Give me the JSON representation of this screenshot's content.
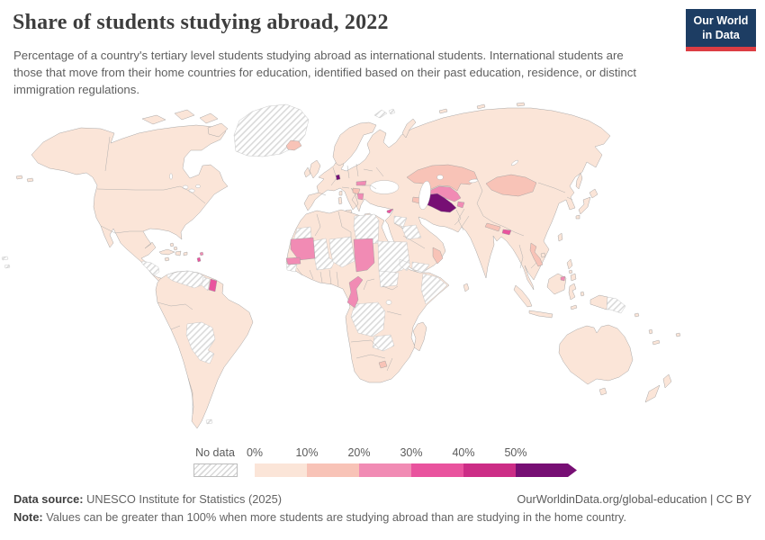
{
  "header": {
    "title": "Share of students studying abroad, 2022",
    "subtitle": "Percentage of a country's tertiary level students studying abroad as international students. International students are those that move from their home countries for education, identified based on their past education, residence, or distinct immigration regulations.",
    "logo": {
      "line1": "Our World",
      "line2": "in Data",
      "bg": "#1d3d63",
      "accent": "#dc3d43"
    }
  },
  "legend": {
    "no_data_label": "No data",
    "bins": [
      {
        "tick": "0%",
        "range": "0-10%",
        "color": "#fbe5d8"
      },
      {
        "tick": "10%",
        "range": "10-20%",
        "color": "#f8c3b7"
      },
      {
        "tick": "20%",
        "range": "20-30%",
        "color": "#f18bb4"
      },
      {
        "tick": "30%",
        "range": "30-40%",
        "color": "#e9539e"
      },
      {
        "tick": "40%",
        "range": "40-50%",
        "color": "#cc2d86"
      },
      {
        "tick": "50%",
        "range": "50%+",
        "color": "#770f74"
      }
    ]
  },
  "map": {
    "border_color": "#9e9e9e",
    "no_data_style": "diagonal-hatch",
    "regions": [
      {
        "id": "north-america",
        "name": "North America mainland",
        "bin": 0
      },
      {
        "id": "arctic-1",
        "name": "Canadian arctic island",
        "bin": 0
      },
      {
        "id": "arctic-2",
        "name": "Canadian arctic island",
        "bin": 0
      },
      {
        "id": "arctic-3",
        "name": "Canadian arctic island",
        "bin": 0
      },
      {
        "id": "arctic-4",
        "name": "Baffin island",
        "bin": 0
      },
      {
        "id": "aleutians",
        "name": "Aleutian islands",
        "bin": 0
      },
      {
        "id": "greenland",
        "name": "Greenland",
        "bin": -1
      },
      {
        "id": "iceland",
        "name": "Iceland",
        "bin": 1
      },
      {
        "id": "svalbard",
        "name": "Svalbard",
        "bin": -1
      },
      {
        "id": "cuba",
        "name": "Cuba",
        "bin": 0
      },
      {
        "id": "hispaniola",
        "name": "Hispaniola",
        "bin": 0
      },
      {
        "id": "jamaica",
        "name": "Jamaica",
        "bin": 0
      },
      {
        "id": "puerto-rico",
        "name": "Puerto Rico",
        "bin": 0
      },
      {
        "id": "bahamas",
        "name": "Bahamas",
        "bin": 0
      },
      {
        "id": "antilles-a",
        "name": "Lesser Antilles island",
        "bin": 2
      },
      {
        "id": "antilles-b",
        "name": "Lesser Antilles island",
        "bin": 3
      },
      {
        "id": "honduras-nicaragua",
        "name": "Honduras and Nicaragua",
        "bin": -1
      },
      {
        "id": "south-america",
        "name": "South America mainland",
        "bin": 0
      },
      {
        "id": "venezuela",
        "name": "Venezuela",
        "bin": -1
      },
      {
        "id": "guyana",
        "name": "Guyana",
        "bin": -1
      },
      {
        "id": "suriname",
        "name": "Suriname",
        "bin": 3
      },
      {
        "id": "bolivia-paraguay",
        "name": "Bolivia and Paraguay",
        "bin": -1
      },
      {
        "id": "falklands",
        "name": "Falkland Islands",
        "bin": -1
      },
      {
        "id": "eurasia",
        "name": "Eurasia mainland",
        "bin": 0
      },
      {
        "id": "scandinavia",
        "name": "Scandinavia",
        "bin": 0
      },
      {
        "id": "uk",
        "name": "United Kingdom",
        "bin": 0
      },
      {
        "id": "ireland",
        "name": "Ireland",
        "bin": 0
      },
      {
        "id": "novaya-zemlya",
        "name": "Novaya Zemlya",
        "bin": 0
      },
      {
        "id": "arctic-specks",
        "name": "Russian arctic islands",
        "bin": 0
      },
      {
        "id": "sicily",
        "name": "Sicily",
        "bin": 0
      },
      {
        "id": "sardinia",
        "name": "Sardinia",
        "bin": 0
      },
      {
        "id": "corsica",
        "name": "Corsica",
        "bin": 0
      },
      {
        "id": "crete",
        "name": "Crete",
        "bin": 0
      },
      {
        "id": "luxembourg",
        "name": "Luxembourg",
        "bin": 5
      },
      {
        "id": "slovakia",
        "name": "Slovakia",
        "bin": 2
      },
      {
        "id": "moldova",
        "name": "Moldova",
        "bin": 2
      },
      {
        "id": "croatia-bosnia",
        "name": "Croatia and Bosnia",
        "bin": 1
      },
      {
        "id": "albania-macedonia",
        "name": "Albania and North Macedonia",
        "bin": 2
      },
      {
        "id": "cyprus",
        "name": "Cyprus",
        "bin": 3
      },
      {
        "id": "africa",
        "name": "Africa mainland",
        "bin": 0
      },
      {
        "id": "madagascar",
        "name": "Madagascar",
        "bin": 0
      },
      {
        "id": "western-sahara",
        "name": "Western Sahara",
        "bin": -1
      },
      {
        "id": "mali",
        "name": "Mali",
        "bin": -1
      },
      {
        "id": "niger",
        "name": "Niger",
        "bin": -1
      },
      {
        "id": "gambia-bissau",
        "name": "Gambia and Guinea-Bissau",
        "bin": -1
      },
      {
        "id": "libya",
        "name": "Libya",
        "bin": -1
      },
      {
        "id": "sudan",
        "name": "Sudan",
        "bin": -1
      },
      {
        "id": "south-sudan",
        "name": "South Sudan",
        "bin": -1
      },
      {
        "id": "eritrea-djibouti",
        "name": "Eritrea and Djibouti",
        "bin": -1
      },
      {
        "id": "somalia",
        "name": "Somalia",
        "bin": -1
      },
      {
        "id": "dr-congo",
        "name": "Democratic Republic of Congo",
        "bin": -1
      },
      {
        "id": "zambia",
        "name": "Zambia",
        "bin": -1
      },
      {
        "id": "mauritania",
        "name": "Mauritania",
        "bin": 2
      },
      {
        "id": "senegal",
        "name": "Senegal",
        "bin": 2
      },
      {
        "id": "chad",
        "name": "Chad",
        "bin": 2
      },
      {
        "id": "cameroon-congo",
        "name": "Cameroon and Congo",
        "bin": 2
      },
      {
        "id": "lesotho",
        "name": "Lesotho",
        "bin": 1
      },
      {
        "id": "syria",
        "name": "Syria",
        "bin": -1
      },
      {
        "id": "iraq",
        "name": "Iraq",
        "bin": -1
      },
      {
        "id": "yemen",
        "name": "Yemen",
        "bin": -1
      },
      {
        "id": "oman",
        "name": "Oman",
        "bin": 1
      },
      {
        "id": "azerbaijan",
        "name": "Azerbaijan",
        "bin": 1
      },
      {
        "id": "kazakhstan",
        "name": "Kazakhstan",
        "bin": 1
      },
      {
        "id": "uzbekistan",
        "name": "Uzbekistan",
        "bin": 2
      },
      {
        "id": "turkmenistan",
        "name": "Turkmenistan",
        "bin": 5
      },
      {
        "id": "tajikistan",
        "name": "Tajikistan",
        "bin": 2
      },
      {
        "id": "mongolia",
        "name": "Mongolia",
        "bin": 1
      },
      {
        "id": "nepal",
        "name": "Nepal",
        "bin": 1
      },
      {
        "id": "bhutan",
        "name": "Bhutan",
        "bin": 3
      },
      {
        "id": "laos",
        "name": "Laos",
        "bin": 1
      },
      {
        "id": "sakhalin",
        "name": "Sakhalin",
        "bin": 0
      },
      {
        "id": "hokkaido",
        "name": "Japan Hokkaido",
        "bin": 0
      },
      {
        "id": "honshu",
        "name": "Japan Honshu",
        "b in": 0,
        "bin": 0
      },
      {
        "id": "kyushu",
        "name": "Japan Kyushu",
        "bin": 0
      },
      {
        "id": "taiwan",
        "name": "Taiwan",
        "bin": 0
      },
      {
        "id": "hainan",
        "name": "Hainan",
        "bin": 0
      },
      {
        "id": "sri-lanka",
        "name": "Sri Lanka",
        "bin": 0
      },
      {
        "id": "luzon",
        "name": "Philippines Luzon",
        "bin": 0
      },
      {
        "id": "visayas",
        "name": "Philippines Visayas",
        "bin": 0
      },
      {
        "id": "mindanao",
        "name": "Philippines Mindanao",
        "bin": 0
      },
      {
        "id": "sumatra",
        "name": "Sumatra",
        "bin": 0
      },
      {
        "id": "java",
        "name": "Java",
        "bin": 0
      },
      {
        "id": "borneo",
        "name": "Borneo",
        "bin": 0
      },
      {
        "id": "brunei",
        "name": "Brunei",
        "bin": 2
      },
      {
        "id": "sulawesi",
        "name": "Sulawesi",
        "bin": 0
      },
      {
        "id": "timor",
        "name": "Timor",
        "bin": 0
      },
      {
        "id": "maluku",
        "name": "Maluku",
        "bin": 0
      },
      {
        "id": "new-guinea-west",
        "name": "New Guinea (Indonesia)",
        "bin": 0
      },
      {
        "id": "papua-new-guinea",
        "name": "Papua New Guinea",
        "bin": -1
      },
      {
        "id": "solomon",
        "name": "Solomon Islands",
        "bin": 0
      },
      {
        "id": "vanuatu",
        "name": "Vanuatu",
        "bin": 0
      },
      {
        "id": "fiji",
        "name": "Fiji",
        "bin": 0
      },
      {
        "id": "new-caledonia",
        "name": "New Caledonia",
        "bin": 0
      },
      {
        "id": "australia",
        "name": "Australia",
        "bin": 0
      },
      {
        "id": "tasmania",
        "name": "Tasmania",
        "bin": 0
      },
      {
        "id": "nz-north",
        "name": "New Zealand North Island",
        "bin": 0
      },
      {
        "id": "nz-south",
        "name": "New Zealand South Island",
        "bin": 0
      },
      {
        "id": "pacific-specks",
        "name": "Pacific islands",
        "bin": -1
      }
    ]
  },
  "footer": {
    "source_label": "Data source:",
    "source_text": " UNESCO Institute for Statistics (2025)",
    "link_text": "OurWorldinData.org/global-education | CC BY",
    "note_label": "Note:",
    "note_text": " Values can be greater than 100% when more students are studying abroad than are studying in the home country."
  },
  "chart_data": {
    "type": "heatmap",
    "title": "Share of students studying abroad, 2022",
    "unit": "% of a country's tertiary students studying abroad",
    "legend_bins": [
      "0-10%",
      "10-20%",
      "20-30%",
      "30-40%",
      "40-50%",
      "50%+",
      "No data"
    ],
    "legend_colors": [
      "#fbe5d8",
      "#f8c3b7",
      "#f18bb4",
      "#e9539e",
      "#cc2d86",
      "#770f74",
      "hatched"
    ],
    "readings": {
      "50%+": [
        "Turkmenistan",
        "Luxembourg"
      ],
      "30-40%": [
        "Suriname",
        "Cyprus",
        "Bhutan"
      ],
      "20-30%": [
        "Mauritania",
        "Senegal",
        "Chad",
        "Cameroon/Congo",
        "Uzbekistan",
        "Tajikistan",
        "Slovakia",
        "Moldova",
        "Albania/North Macedonia",
        "Brunei"
      ],
      "10-20%": [
        "Iceland",
        "Kazakhstan",
        "Mongolia",
        "Nepal",
        "Laos",
        "Oman",
        "Azerbaijan",
        "Croatia/Bosnia",
        "Lesotho"
      ],
      "0-10%": [
        "United States",
        "Canada",
        "Mexico",
        "Brazil",
        "Argentina",
        "most of Europe",
        "Russia",
        "China",
        "India",
        "Saudi Arabia",
        "Ethiopia",
        "South Africa",
        "Indonesia",
        "Australia",
        "New Zealand"
      ],
      "no_data": [
        "Greenland",
        "Svalbard",
        "Honduras",
        "Nicaragua",
        "Venezuela",
        "Guyana",
        "Bolivia",
        "Paraguay",
        "Falkland Islands",
        "Western Sahara",
        "Mali",
        "Niger",
        "Gambia/Guinea-Bissau",
        "Libya",
        "Sudan",
        "South Sudan",
        "Eritrea",
        "Djibouti",
        "Somalia",
        "DR Congo",
        "Zambia",
        "Syria",
        "Iraq",
        "Yemen",
        "Papua New Guinea"
      ]
    }
  }
}
